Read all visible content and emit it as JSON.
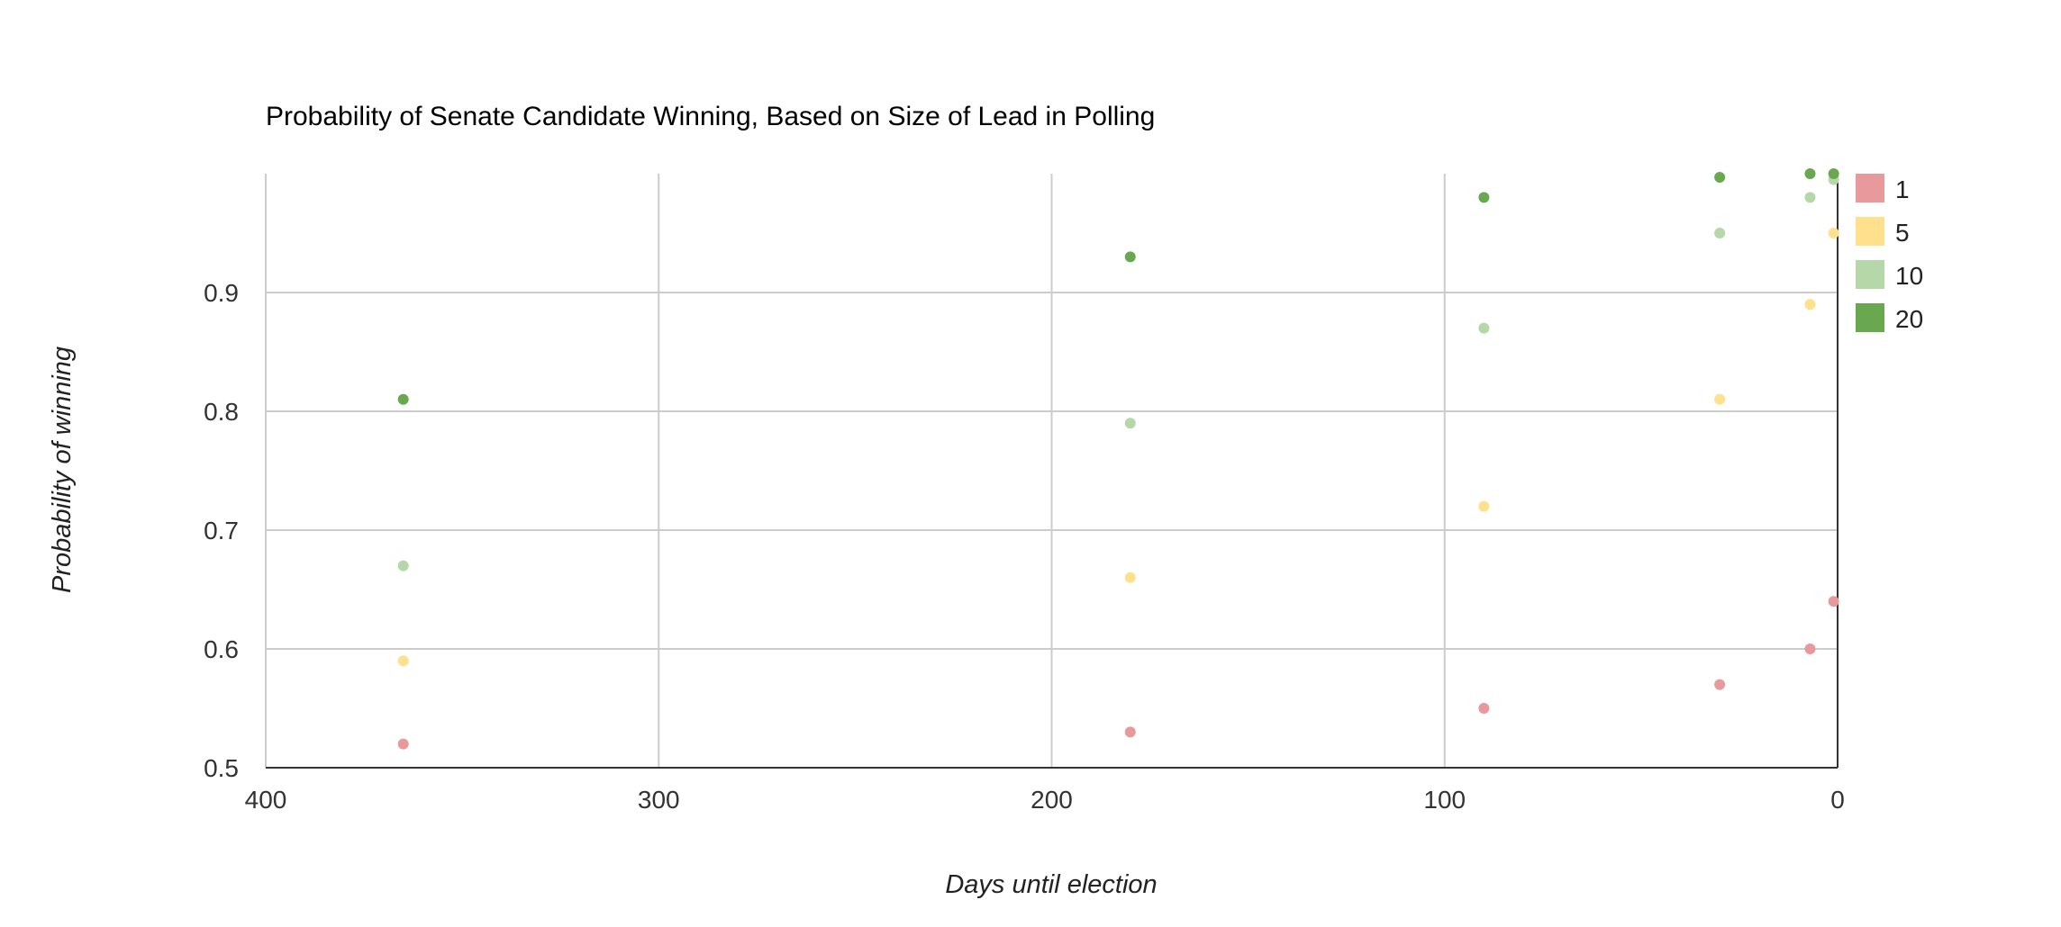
{
  "chart_data": {
    "type": "scatter",
    "title": "Probability of Senate Candidate Winning, Based on Size of Lead in Polling",
    "xlabel": "Days until election",
    "ylabel": "Probability of winning",
    "xlim": [
      400,
      0
    ],
    "x_reversed": true,
    "ylim": [
      0.5,
      1.0
    ],
    "xticks": [
      400,
      300,
      200,
      100,
      0
    ],
    "xtick_labels": [
      "400",
      "300",
      "200",
      "100",
      "0"
    ],
    "yticks": [
      0.5,
      0.6,
      0.7,
      0.8,
      0.9
    ],
    "ytick_labels": [
      "0.5",
      "0.6",
      "0.7",
      "0.8",
      "0.9"
    ],
    "grid": true,
    "legend_position": "right",
    "series": [
      {
        "name": "1",
        "color": "#e8999b",
        "points": [
          [
            365,
            0.52
          ],
          [
            180,
            0.53
          ],
          [
            90,
            0.55
          ],
          [
            30,
            0.57
          ],
          [
            7,
            0.6
          ],
          [
            1,
            0.64
          ]
        ]
      },
      {
        "name": "5",
        "color": "#ffe08c",
        "points": [
          [
            365,
            0.59
          ],
          [
            180,
            0.66
          ],
          [
            90,
            0.72
          ],
          [
            30,
            0.81
          ],
          [
            7,
            0.89
          ],
          [
            1,
            0.95
          ]
        ]
      },
      {
        "name": "10",
        "color": "#b6d7a8",
        "points": [
          [
            365,
            0.67
          ],
          [
            180,
            0.79
          ],
          [
            90,
            0.87
          ],
          [
            30,
            0.95
          ],
          [
            7,
            0.98
          ],
          [
            1,
            0.995
          ]
        ]
      },
      {
        "name": "20",
        "color": "#6aa84f",
        "points": [
          [
            365,
            0.81
          ],
          [
            180,
            0.93
          ],
          [
            90,
            0.98
          ],
          [
            30,
            0.997
          ],
          [
            7,
            1.0
          ],
          [
            1,
            1.0
          ]
        ]
      }
    ]
  }
}
